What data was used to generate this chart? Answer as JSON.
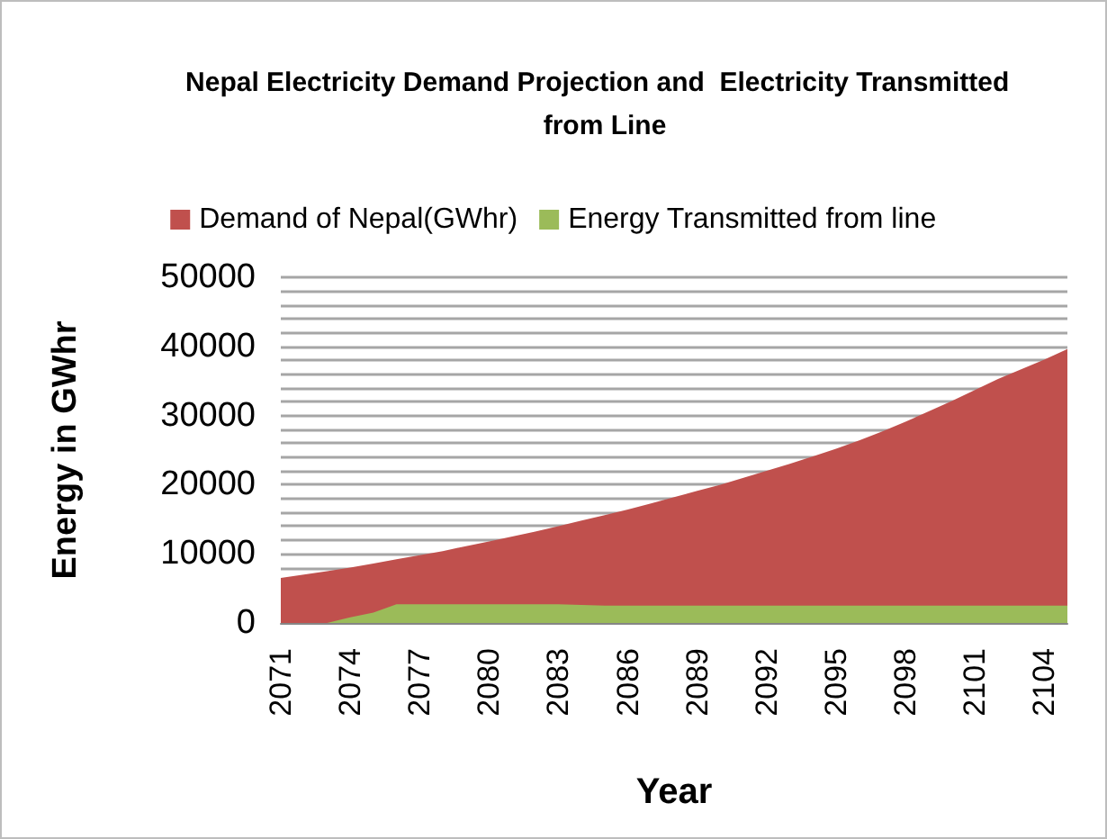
{
  "chart_data": {
    "type": "area",
    "title": "Nepal Electricity Demand Projection and  Electricity Transmitted  from Line",
    "xlabel": "Year",
    "ylabel": "Energy in GWhr",
    "categories": [
      "2071",
      null,
      null,
      "2074",
      null,
      null,
      "2077",
      null,
      null,
      "2080",
      null,
      null,
      "2083",
      null,
      null,
      "2086",
      null,
      null,
      "2089",
      null,
      null,
      "2092",
      null,
      null,
      "2095",
      null,
      null,
      "2098",
      null,
      null,
      "2101",
      null,
      null,
      "2104",
      null
    ],
    "series": [
      {
        "name": "Demand of Nepal(GWhr)",
        "color": "#c0504d",
        "values": [
          6500,
          7000,
          7500,
          8000,
          8600,
          9200,
          9800,
          10400,
          11100,
          11800,
          12500,
          13200,
          14000,
          14800,
          15600,
          16400,
          17300,
          18200,
          19100,
          20000,
          21000,
          22000,
          23000,
          24100,
          25200,
          26400,
          27700,
          29100,
          30600,
          32100,
          33700,
          35300,
          36700,
          38100,
          39600
        ]
      },
      {
        "name": "Energy Transmitted from line",
        "color": "#9bbb59",
        "values": [
          0,
          0,
          0,
          800,
          1500,
          2700,
          2700,
          2700,
          2700,
          2700,
          2700,
          2700,
          2700,
          2600,
          2500,
          2500,
          2500,
          2500,
          2500,
          2500,
          2500,
          2500,
          2500,
          2500,
          2500,
          2500,
          2500,
          2500,
          2500,
          2500,
          2500,
          2500,
          2500,
          2500,
          2500
        ]
      }
    ],
    "ylim": [
      0,
      50000
    ],
    "yticks": [
      0,
      {
        "value": 8000,
        "label": null
      },
      10000,
      {
        "value": 12000,
        "label": null
      },
      {
        "value": 14000,
        "label": null
      },
      {
        "value": 16000,
        "label": null
      },
      {
        "value": 18000,
        "label": null
      },
      20000,
      {
        "value": 22000,
        "label": null
      },
      {
        "value": 24000,
        "label": null
      },
      {
        "value": 26000,
        "label": null
      },
      {
        "value": 28000,
        "label": null
      },
      30000,
      {
        "value": 32000,
        "label": null
      },
      {
        "value": 34000,
        "label": null
      },
      {
        "value": 36000,
        "label": null
      },
      {
        "value": 38000,
        "label": null
      },
      40000,
      {
        "value": 42000,
        "label": null
      },
      {
        "value": 44000,
        "label": null
      },
      {
        "value": 46000,
        "label": null
      },
      {
        "value": 48000,
        "label": null
      },
      50000
    ],
    "grid": "y",
    "legend": "top"
  }
}
